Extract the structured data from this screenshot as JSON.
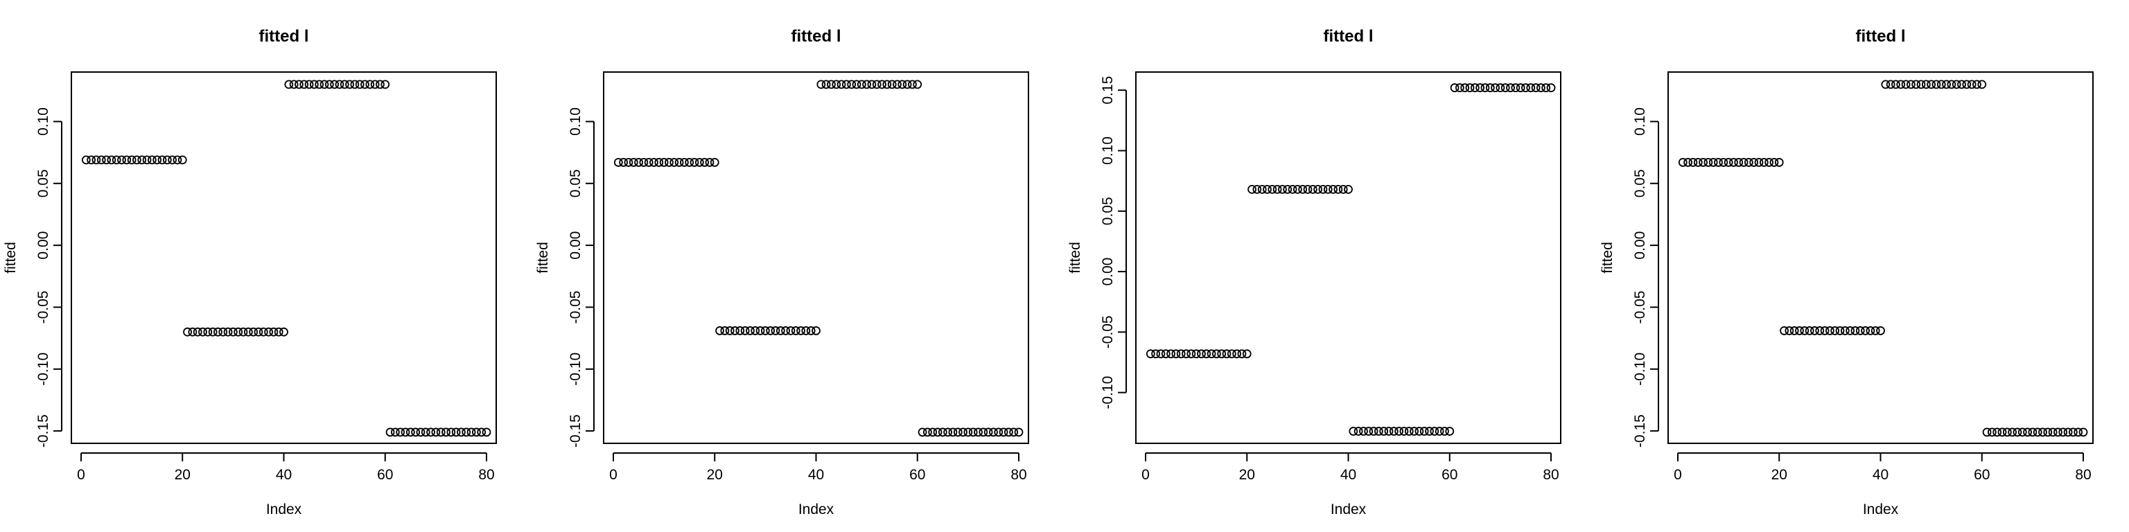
{
  "chart_data": [
    {
      "type": "scatter",
      "title": "fitted l",
      "xlabel": "Index",
      "ylabel": "fitted",
      "xlim": [
        0,
        80
      ],
      "ylim": [
        -0.16,
        0.14
      ],
      "xticks": [
        0,
        20,
        40,
        60,
        80
      ],
      "yticks": [
        -0.15,
        -0.1,
        -0.05,
        0.0,
        0.05,
        0.1
      ],
      "ytick_labels": [
        "-0.15",
        "-0.10",
        "-0.05",
        "0.00",
        "0.05",
        "0.10"
      ],
      "groups": [
        {
          "x_start": 1,
          "x_end": 20,
          "y": 0.069
        },
        {
          "x_start": 21,
          "x_end": 40,
          "y": -0.07
        },
        {
          "x_start": 41,
          "x_end": 60,
          "y": 0.13
        },
        {
          "x_start": 61,
          "x_end": 80,
          "y": -0.151
        }
      ]
    },
    {
      "type": "scatter",
      "title": "fitted l",
      "xlabel": "Index",
      "ylabel": "fitted",
      "xlim": [
        0,
        80
      ],
      "ylim": [
        -0.16,
        0.14
      ],
      "xticks": [
        0,
        20,
        40,
        60,
        80
      ],
      "yticks": [
        -0.15,
        -0.1,
        -0.05,
        0.0,
        0.05,
        0.1
      ],
      "ytick_labels": [
        "-0.15",
        "-0.10",
        "-0.05",
        "0.00",
        "0.05",
        "0.10"
      ],
      "groups": [
        {
          "x_start": 1,
          "x_end": 20,
          "y": 0.067
        },
        {
          "x_start": 21,
          "x_end": 40,
          "y": -0.069
        },
        {
          "x_start": 41,
          "x_end": 60,
          "y": 0.13
        },
        {
          "x_start": 61,
          "x_end": 80,
          "y": -0.151
        }
      ]
    },
    {
      "type": "scatter",
      "title": "fitted l",
      "xlabel": "Index",
      "ylabel": "fitted",
      "xlim": [
        0,
        80
      ],
      "ylim": [
        -0.142,
        0.165
      ],
      "xticks": [
        0,
        20,
        40,
        60,
        80
      ],
      "yticks": [
        -0.1,
        -0.05,
        0.0,
        0.05,
        0.1,
        0.15
      ],
      "ytick_labels": [
        "-0.10",
        "-0.05",
        "0.00",
        "0.05",
        "0.10",
        "0.15"
      ],
      "groups": [
        {
          "x_start": 1,
          "x_end": 20,
          "y": -0.068
        },
        {
          "x_start": 21,
          "x_end": 40,
          "y": 0.068
        },
        {
          "x_start": 41,
          "x_end": 60,
          "y": -0.132
        },
        {
          "x_start": 61,
          "x_end": 80,
          "y": 0.152
        }
      ]
    },
    {
      "type": "scatter",
      "title": "fitted l",
      "xlabel": "Index",
      "ylabel": "fitted",
      "xlim": [
        0,
        80
      ],
      "ylim": [
        -0.16,
        0.14
      ],
      "xticks": [
        0,
        20,
        40,
        60,
        80
      ],
      "yticks": [
        -0.15,
        -0.1,
        -0.05,
        0.0,
        0.05,
        0.1
      ],
      "ytick_labels": [
        "-0.15",
        "-0.10",
        "-0.05",
        "0.00",
        "0.05",
        "0.10"
      ],
      "groups": [
        {
          "x_start": 1,
          "x_end": 20,
          "y": 0.067
        },
        {
          "x_start": 21,
          "x_end": 40,
          "y": -0.069
        },
        {
          "x_start": 41,
          "x_end": 60,
          "y": 0.13
        },
        {
          "x_start": 61,
          "x_end": 80,
          "y": -0.151
        }
      ]
    }
  ]
}
